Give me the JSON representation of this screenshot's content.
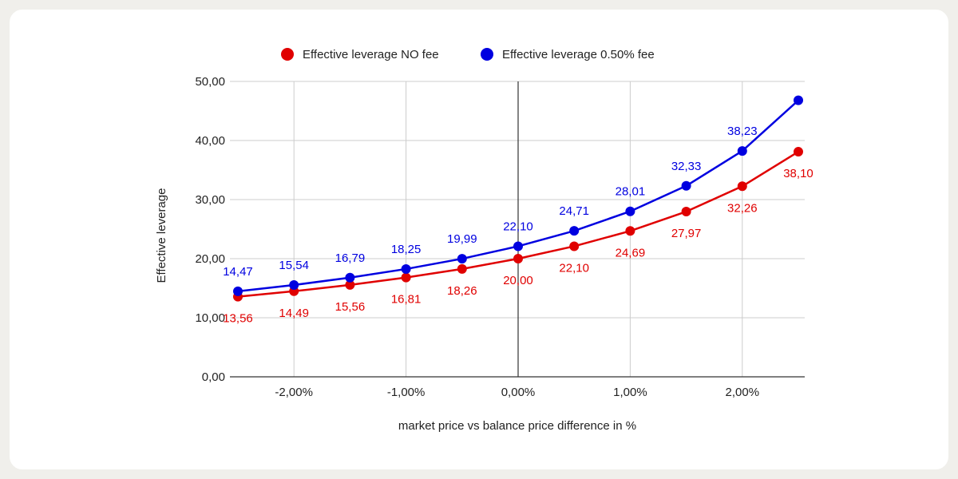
{
  "chart_data": {
    "type": "line",
    "title": "",
    "xlabel": "market price vs balance price difference in %",
    "ylabel": "Effective leverage",
    "x": [
      -0.025,
      -0.02,
      -0.015,
      -0.01,
      -0.005,
      0,
      0.005,
      0.01,
      0.015,
      0.02,
      0.025
    ],
    "xlim": [
      -0.025,
      0.025
    ],
    "ylim": [
      0,
      50
    ],
    "x_ticks": [
      {
        "value": -0.02,
        "label": "-2,00%"
      },
      {
        "value": -0.01,
        "label": "-1,00%"
      },
      {
        "value": 0,
        "label": "0,00%"
      },
      {
        "value": 0.01,
        "label": "1,00%"
      },
      {
        "value": 0.02,
        "label": "2,00%"
      }
    ],
    "y_ticks": [
      {
        "value": 0,
        "label": "0,00"
      },
      {
        "value": 10,
        "label": "10,00"
      },
      {
        "value": 20,
        "label": "20,00"
      },
      {
        "value": 30,
        "label": "30,00"
      },
      {
        "value": 40,
        "label": "40,00"
      },
      {
        "value": 50,
        "label": "50,00"
      }
    ],
    "x_grid": [
      -0.02,
      -0.01,
      0.01,
      0.02
    ],
    "x_zero_line": 0,
    "legend_position": "top",
    "series": [
      {
        "name": "Effective leverage NO fee",
        "color": "#e00000",
        "label_side": "below",
        "values": [
          13.56,
          14.49,
          15.56,
          16.81,
          18.26,
          20.0,
          22.1,
          24.69,
          27.97,
          32.26,
          38.1
        ],
        "labels": [
          "13,56",
          "14,49",
          "15,56",
          "16,81",
          "18,26",
          "20,00",
          "22,10",
          "24,69",
          "27,97",
          "32,26",
          "38,10"
        ]
      },
      {
        "name": "Effective leverage 0.50% fee",
        "color": "#0000e0",
        "label_side": "above",
        "values": [
          14.47,
          15.54,
          16.79,
          18.25,
          19.99,
          22.1,
          24.71,
          28.01,
          32.33,
          38.23,
          46.8
        ],
        "labels": [
          "14,47",
          "15,54",
          "16,79",
          "18,25",
          "19,99",
          "22,10",
          "24,71",
          "28,01",
          "32,33",
          "38,23",
          null
        ]
      }
    ]
  }
}
